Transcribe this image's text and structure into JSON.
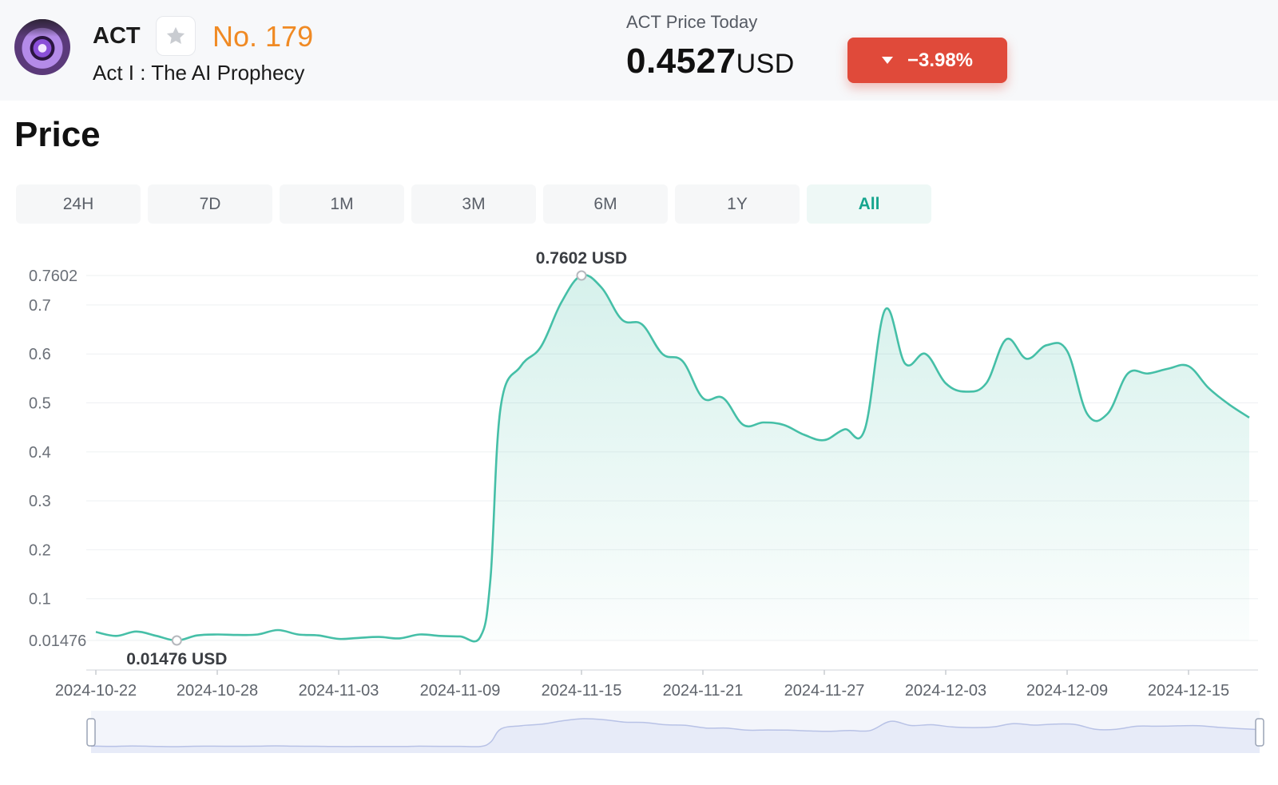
{
  "header": {
    "ticker": "ACT",
    "rank": "No. 179",
    "full_name": "Act I : The AI Prophecy",
    "price_label": "ACT Price Today",
    "price": "0.4527",
    "price_unit": "USD",
    "change": "−3.98%"
  },
  "section_title": "Price",
  "range_tabs": [
    {
      "label": "24H",
      "active": false
    },
    {
      "label": "7D",
      "active": false
    },
    {
      "label": "1M",
      "active": false
    },
    {
      "label": "3M",
      "active": false
    },
    {
      "label": "6M",
      "active": false
    },
    {
      "label": "1Y",
      "active": false
    },
    {
      "label": "All",
      "active": true
    }
  ],
  "colors": {
    "line": "#45bfa7",
    "negative": "#e04a3a",
    "rank": "#f08a24",
    "active_tab": "#15a58e"
  },
  "chart_data": {
    "type": "area",
    "title": "",
    "xlabel": "",
    "ylabel": "",
    "x_ticks": [
      "2024-10-22",
      "2024-10-28",
      "2024-11-03",
      "2024-11-09",
      "2024-11-15",
      "2024-11-21",
      "2024-11-27",
      "2024-12-03",
      "2024-12-09",
      "2024-12-15"
    ],
    "y_ticks": [
      "0.01476",
      "0.1",
      "0.2",
      "0.3",
      "0.4",
      "0.5",
      "0.6",
      "0.7",
      "0.7602"
    ],
    "ylim": [
      0.01476,
      0.7602
    ],
    "xlim": [
      "2024-10-22",
      "2024-12-18"
    ],
    "grid": true,
    "max_label": "0.7602 USD",
    "max_point": {
      "x": "2024-11-15",
      "y": 0.7602
    },
    "min_label": "0.01476 USD",
    "min_point": {
      "x": "2024-10-26",
      "y": 0.01476
    },
    "series": [
      {
        "points": [
          [
            "2024-10-22",
            0.032
          ],
          [
            "2024-10-23",
            0.024
          ],
          [
            "2024-10-24",
            0.033
          ],
          [
            "2024-10-25",
            0.024
          ],
          [
            "2024-10-26",
            0.01476
          ],
          [
            "2024-10-27",
            0.025
          ],
          [
            "2024-10-28",
            0.027
          ],
          [
            "2024-10-29",
            0.026
          ],
          [
            "2024-10-30",
            0.027
          ],
          [
            "2024-10-31",
            0.036
          ],
          [
            "2024-11-01",
            0.027
          ],
          [
            "2024-11-02",
            0.025
          ],
          [
            "2024-11-03",
            0.018
          ],
          [
            "2024-11-04",
            0.02
          ],
          [
            "2024-11-05",
            0.022
          ],
          [
            "2024-11-06",
            0.019
          ],
          [
            "2024-11-07",
            0.027
          ],
          [
            "2024-11-08",
            0.024
          ],
          [
            "2024-11-09",
            0.023
          ],
          [
            "2024-11-10",
            0.022
          ],
          [
            "2024-11-10T12:00",
            0.14
          ],
          [
            "2024-11-11",
            0.49
          ],
          [
            "2024-11-12",
            0.575
          ],
          [
            "2024-11-13",
            0.615
          ],
          [
            "2024-11-14",
            0.705
          ],
          [
            "2024-11-15",
            0.7602
          ],
          [
            "2024-11-16",
            0.735
          ],
          [
            "2024-11-17",
            0.67
          ],
          [
            "2024-11-18",
            0.66
          ],
          [
            "2024-11-19",
            0.6
          ],
          [
            "2024-11-20",
            0.585
          ],
          [
            "2024-11-21",
            0.51
          ],
          [
            "2024-11-22",
            0.51
          ],
          [
            "2024-11-23",
            0.455
          ],
          [
            "2024-11-24",
            0.46
          ],
          [
            "2024-11-25",
            0.455
          ],
          [
            "2024-11-26",
            0.435
          ],
          [
            "2024-11-27",
            0.424
          ],
          [
            "2024-11-28",
            0.446
          ],
          [
            "2024-11-29",
            0.446
          ],
          [
            "2024-11-30",
            0.69
          ],
          [
            "2024-12-01",
            0.58
          ],
          [
            "2024-12-02",
            0.6
          ],
          [
            "2024-12-03",
            0.54
          ],
          [
            "2024-12-04",
            0.523
          ],
          [
            "2024-12-05",
            0.54
          ],
          [
            "2024-12-06",
            0.63
          ],
          [
            "2024-12-07",
            0.59
          ],
          [
            "2024-12-08",
            0.618
          ],
          [
            "2024-12-09",
            0.606
          ],
          [
            "2024-12-10",
            0.477
          ],
          [
            "2024-12-11",
            0.478
          ],
          [
            "2024-12-12",
            0.56
          ],
          [
            "2024-12-13",
            0.56
          ],
          [
            "2024-12-14",
            0.57
          ],
          [
            "2024-12-15",
            0.575
          ],
          [
            "2024-12-16",
            0.53
          ],
          [
            "2024-12-17",
            0.497
          ],
          [
            "2024-12-18",
            0.47
          ]
        ]
      }
    ]
  }
}
